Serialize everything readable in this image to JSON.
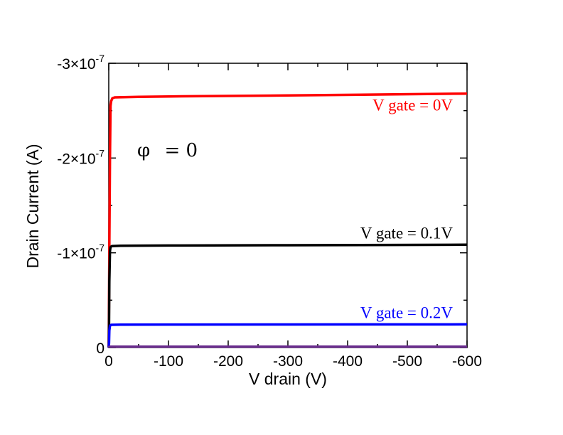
{
  "chart_data": {
    "type": "line",
    "xlabel": "V drain (V)",
    "ylabel": "Drain Current (A)",
    "xlim": [
      0,
      -600
    ],
    "ylim": [
      0,
      -3e-07
    ],
    "x_ticks": [
      {
        "value": 0,
        "label": "0"
      },
      {
        "value": -100,
        "label": "-100"
      },
      {
        "value": -200,
        "label": "-200"
      },
      {
        "value": -300,
        "label": "-300"
      },
      {
        "value": -400,
        "label": "-400"
      },
      {
        "value": -500,
        "label": "-500"
      },
      {
        "value": -600,
        "label": "-600"
      }
    ],
    "y_ticks": [
      {
        "value": 0,
        "mant": "0",
        "exp": ""
      },
      {
        "value": -1e-07,
        "mant": "-1×10",
        "exp": "-7"
      },
      {
        "value": -2e-07,
        "mant": "-2×10",
        "exp": "-7"
      },
      {
        "value": -3e-07,
        "mant": "-3×10",
        "exp": "-7"
      }
    ],
    "grid": false,
    "series": [
      {
        "label": "V gate = 0V",
        "color": "#ff0000",
        "x": [
          0,
          -1,
          -2,
          -3,
          -4,
          -6,
          -10,
          -50,
          -100,
          -300,
          -600
        ],
        "y": [
          0,
          -1.05e-07,
          -2e-07,
          -2.55e-07,
          -2.6e-07,
          -2.63e-07,
          -2.64e-07,
          -2.645e-07,
          -2.65e-07,
          -2.66e-07,
          -2.68e-07
        ]
      },
      {
        "label": "V gate = 0.1V",
        "color": "#000000",
        "x": [
          0,
          -0.5,
          -1,
          -2,
          -3,
          -5,
          -20,
          -100,
          -300,
          -600
        ],
        "y": [
          0,
          -2.5e-08,
          -7e-08,
          -1.02e-07,
          -1.06e-07,
          -1.07e-07,
          -1.075e-07,
          -1.077e-07,
          -1.08e-07,
          -1.085e-07
        ]
      },
      {
        "label": "V gate = 0.2V",
        "color": "#0000ff",
        "x": [
          0,
          -0.5,
          -1,
          -2,
          -4,
          -20,
          -100,
          -300,
          -600
        ],
        "y": [
          0,
          -5e-09,
          -1.8e-08,
          -2.3e-08,
          -2.4e-08,
          -2.42e-08,
          -2.43e-08,
          -2.44e-08,
          -2.45e-08
        ]
      },
      {
        "label": "",
        "color": "#6a2c8e",
        "x": [
          0,
          -1,
          -600
        ],
        "y": [
          0,
          -1e-09,
          -1e-09
        ]
      }
    ],
    "annotation": {
      "symbol": "φ",
      "text": " = 0"
    }
  }
}
